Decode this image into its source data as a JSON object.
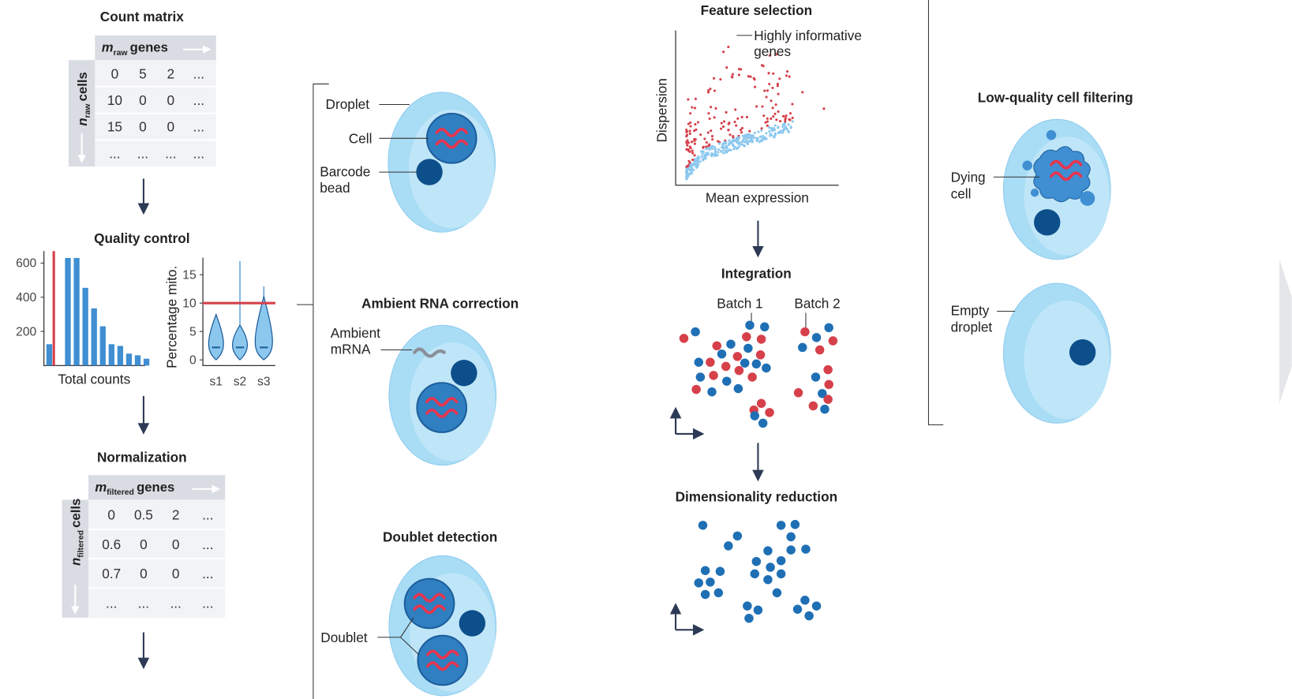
{
  "count_matrix": {
    "title": "Count matrix",
    "col_header": {
      "symbol": "m",
      "sub": "raw",
      "text": "genes"
    },
    "row_header": {
      "symbol": "n",
      "sub": "raw",
      "text": "cells"
    },
    "rows": [
      [
        "0",
        "5",
        "2",
        "..."
      ],
      [
        "10",
        "0",
        "0",
        "..."
      ],
      [
        "15",
        "0",
        "0",
        "..."
      ],
      [
        "...",
        "...",
        "...",
        "..."
      ]
    ]
  },
  "quality_control": {
    "title": "Quality control",
    "histogram": {
      "type": "bar",
      "xlabel": "Total counts",
      "values": [
        125,
        630,
        630,
        455,
        335,
        230,
        125,
        115,
        70,
        60,
        40
      ],
      "ylim": [
        0,
        670
      ],
      "yticks": [
        200,
        400,
        600
      ],
      "color": "#3f8fd2",
      "threshold_color": "#d6404a"
    },
    "violin": {
      "type": "violin",
      "ylabel": "Percentage mito.",
      "categories": [
        "s1",
        "s2",
        "s3"
      ],
      "ylim": [
        -1,
        18
      ],
      "yticks": [
        0,
        5,
        10,
        15
      ],
      "threshold": 10,
      "threshold_color": "#d6404a"
    }
  },
  "normalization": {
    "title": "Normalization",
    "col_header": {
      "symbol": "m",
      "sub": "filtered",
      "text": "genes"
    },
    "row_header": {
      "symbol": "n",
      "sub": "filtered",
      "text": "cells"
    },
    "rows": [
      [
        "0",
        "0.5",
        "2",
        "..."
      ],
      [
        "0.6",
        "0",
        "0",
        "..."
      ],
      [
        "0.7",
        "0",
        "0",
        "..."
      ],
      [
        "...",
        "...",
        "...",
        "..."
      ]
    ]
  },
  "droplet": {
    "droplet": "Droplet",
    "cell": "Cell",
    "bead": [
      "Barcode",
      "bead"
    ]
  },
  "ambient": {
    "title": "Ambient RNA correction",
    "label": [
      "Ambient",
      "mRNA"
    ]
  },
  "doublet": {
    "title": "Doublet detection",
    "label": "Doublet"
  },
  "feature_selection": {
    "title": "Feature selection",
    "ylabel": "Dispersion",
    "xlabel": "Mean expression",
    "annotation": [
      "Highly informative",
      "genes"
    ]
  },
  "integration": {
    "title": "Integration",
    "batches": [
      "Batch 1",
      "Batch 2"
    ]
  },
  "dimensionality_reduction": {
    "title": "Dimensionality reduction"
  },
  "low_quality": {
    "title": "Low-quality cell filtering",
    "dying": [
      "Dying",
      "cell"
    ],
    "empty": [
      "Empty",
      "droplet"
    ]
  }
}
